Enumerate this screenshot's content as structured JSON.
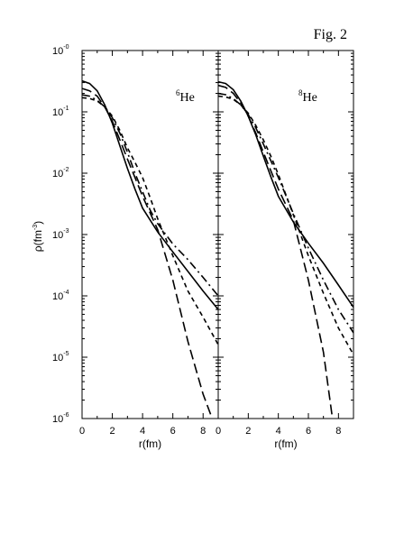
{
  "figure_label": "Fig. 2",
  "chart_data": [
    {
      "type": "line",
      "panel_label": {
        "mass": "6",
        "element": "He"
      },
      "xlabel": "r(fm)",
      "ylabel": {
        "base": "ρ(fm",
        "exp": "-3",
        "close": ")"
      },
      "xlim": [
        0,
        9
      ],
      "ylim": [
        1e-06,
        1
      ],
      "y_scale": "log",
      "x_ticks": [
        0,
        2,
        4,
        6,
        8
      ],
      "y_ticks": [
        {
          "base": "10",
          "exp": "-6",
          "value": 1e-06
        },
        {
          "base": "10",
          "exp": "-5",
          "value": 1e-05
        },
        {
          "base": "10",
          "exp": "-4",
          "value": 0.0001
        },
        {
          "base": "10",
          "exp": "-3",
          "value": 0.001
        },
        {
          "base": "10",
          "exp": "-2",
          "value": 0.01
        },
        {
          "base": "10",
          "exp": "-1",
          "value": 0.1
        },
        {
          "base": "10",
          "exp": "-0",
          "value": 1
        }
      ],
      "series": [
        {
          "style": "solid",
          "x": [
            0,
            0.5,
            1,
            1.5,
            2,
            2.5,
            3,
            3.5,
            4,
            5,
            6,
            7,
            8,
            9
          ],
          "y": [
            0.32,
            0.29,
            0.22,
            0.13,
            0.065,
            0.028,
            0.012,
            0.0055,
            0.0027,
            0.0011,
            0.00052,
            0.00025,
            0.00012,
            6e-05
          ]
        },
        {
          "style": "long-dash",
          "x": [
            0,
            0.5,
            1,
            1.5,
            2,
            2.5,
            3,
            3.5,
            4,
            5,
            6,
            7,
            8,
            8.6
          ],
          "y": [
            0.24,
            0.22,
            0.18,
            0.12,
            0.07,
            0.035,
            0.017,
            0.0085,
            0.0042,
            0.0012,
            0.00018,
            1.8e-05,
            2.5e-06,
            1e-06
          ]
        },
        {
          "style": "dash-dot",
          "x": [
            0,
            0.5,
            1,
            1.5,
            2,
            2.5,
            3,
            3.5,
            4,
            4.5,
            5,
            6,
            7,
            8,
            9
          ],
          "y": [
            0.19,
            0.18,
            0.155,
            0.12,
            0.08,
            0.045,
            0.022,
            0.01,
            0.005,
            0.0025,
            0.0015,
            0.0007,
            0.00039,
            0.0002,
            0.0001
          ]
        },
        {
          "style": "short-dash",
          "x": [
            0,
            0.5,
            1,
            1.5,
            2,
            2.5,
            3,
            3.5,
            4,
            4.5,
            5,
            6,
            7,
            8,
            9
          ],
          "y": [
            0.17,
            0.165,
            0.15,
            0.12,
            0.085,
            0.05,
            0.026,
            0.015,
            0.0085,
            0.004,
            0.0018,
            0.00045,
            0.00012,
            4.5e-05,
            1.6e-05
          ]
        }
      ]
    },
    {
      "type": "line",
      "panel_label": {
        "mass": "8",
        "element": "He"
      },
      "xlabel": "r(fm)",
      "xlim": [
        0,
        9
      ],
      "ylim": [
        1e-06,
        1
      ],
      "y_scale": "log",
      "x_ticks": [
        0,
        2,
        4,
        6,
        8
      ],
      "series": [
        {
          "style": "solid",
          "x": [
            0,
            0.5,
            1,
            1.5,
            2,
            2.5,
            3,
            3.5,
            4,
            5,
            6,
            7,
            8,
            9
          ],
          "y": [
            0.31,
            0.29,
            0.23,
            0.15,
            0.085,
            0.042,
            0.019,
            0.0088,
            0.0042,
            0.0016,
            0.00072,
            0.00034,
            0.00015,
            6.5e-05
          ]
        },
        {
          "style": "long-dash",
          "x": [
            0,
            0.5,
            1,
            1.5,
            2,
            2.5,
            3,
            3.5,
            4,
            5,
            6,
            7,
            7.6
          ],
          "y": [
            0.27,
            0.25,
            0.2,
            0.14,
            0.085,
            0.045,
            0.022,
            0.011,
            0.0055,
            0.0017,
            0.00018,
            1.2e-05,
            1e-06
          ]
        },
        {
          "style": "dash-dot",
          "x": [
            0,
            0.5,
            1,
            1.5,
            2,
            2.5,
            3,
            3.5,
            4,
            5,
            6,
            7,
            8,
            9
          ],
          "y": [
            0.2,
            0.19,
            0.165,
            0.13,
            0.09,
            0.055,
            0.03,
            0.016,
            0.0085,
            0.0022,
            0.0006,
            0.00018,
            6e-05,
            2.5e-05
          ]
        },
        {
          "style": "short-dash",
          "x": [
            0,
            0.5,
            1,
            1.5,
            2,
            2.5,
            3,
            3.5,
            4,
            5,
            6,
            7,
            8,
            9
          ],
          "y": [
            0.18,
            0.175,
            0.16,
            0.13,
            0.095,
            0.06,
            0.035,
            0.019,
            0.0095,
            0.0021,
            0.00045,
            0.00011,
            3e-05,
            1.1e-05
          ]
        }
      ]
    }
  ]
}
